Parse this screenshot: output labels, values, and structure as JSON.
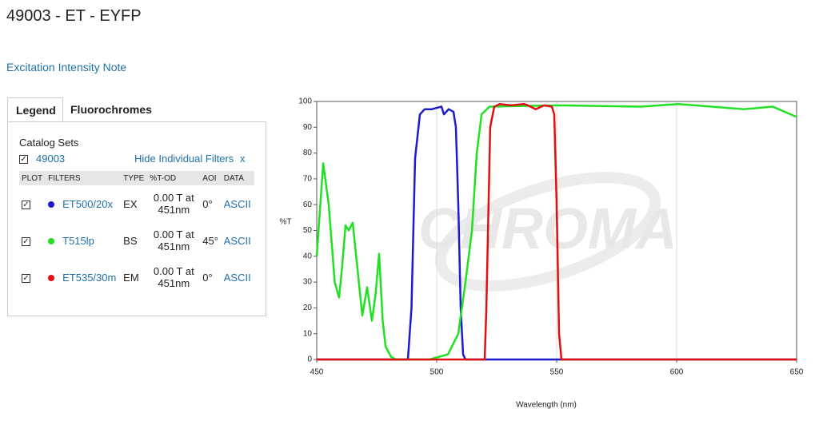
{
  "page": {
    "title": "49003 - ET - EYFP",
    "note_link": "Excitation Intensity Note"
  },
  "legend": {
    "tabs": [
      "Legend",
      "Fluorochromes"
    ],
    "catalog_label": "Catalog Sets",
    "catalog_set": "49003",
    "hide_link": "Hide Individual Filters",
    "close": "x",
    "columns": [
      "PLOT",
      "FILTERS",
      "TYPE",
      "%T-OD",
      "AOI",
      "DATA"
    ]
  },
  "chart_data": {
    "type": "line",
    "x_label": "Wavelength (nm)",
    "y_label": "%T",
    "watermark": "CHROMA",
    "xlim": [
      450,
      650
    ],
    "xticks": [
      450,
      500,
      550,
      600,
      650
    ],
    "ylim": [
      0,
      100
    ],
    "yticks": [
      0,
      10,
      20,
      30,
      40,
      50,
      60,
      70,
      80,
      90,
      100
    ],
    "grid": "x",
    "series": [
      {
        "name": "ET500/20x",
        "color": "#1c1cd0",
        "filter_type": "EX",
        "od": "0.00 T at 451nm",
        "aoi": "0°",
        "data": "ASCII",
        "x": [
          450,
          488,
          489.5,
          491,
          493,
          495,
          498,
          500,
          502,
          503,
          505,
          507,
          508,
          509,
          510,
          511,
          512,
          650
        ],
        "values": [
          0,
          0,
          20,
          78,
          95,
          97,
          97,
          97.5,
          98,
          95,
          97,
          96,
          90,
          60,
          20,
          2,
          0,
          0
        ]
      },
      {
        "name": "T515lp",
        "color": "#22e022",
        "filter_type": "BS",
        "od": "0.00 T at 451nm",
        "aoi": "45°",
        "data": "ASCII",
        "x": [
          450,
          452.7,
          455,
          457.5,
          459.3,
          460.5,
          462,
          463.3,
          465,
          467,
          469,
          471,
          473,
          474.5,
          476,
          477.5,
          478.7,
          481,
          483,
          497,
          504.7,
          509,
          512,
          514.7,
          516.7,
          518.7,
          522,
          551,
          585,
          600.7,
          628,
          640,
          650
        ],
        "values": [
          40,
          76,
          60,
          30,
          24,
          35,
          52,
          50,
          53,
          35,
          17,
          28,
          15,
          25,
          41,
          15,
          5,
          1,
          0,
          0,
          2,
          10,
          30,
          50,
          80,
          95,
          98,
          98.5,
          98,
          99,
          97,
          98,
          94
        ]
      },
      {
        "name": "ET535/30m",
        "color": "#e01010",
        "filter_type": "EM",
        "od": "0.00 T at 451nm",
        "aoi": "0°",
        "data": "ASCII",
        "x": [
          450,
          520,
          520.7,
          522.3,
          524,
          526.3,
          531,
          536.3,
          538,
          541.3,
          544.7,
          548,
          549,
          550,
          551,
          552,
          650
        ],
        "values": [
          0,
          0,
          20,
          90,
          98,
          99,
          98.5,
          99,
          98.5,
          97,
          98.5,
          98,
          95,
          60,
          10,
          0,
          0
        ]
      }
    ]
  }
}
